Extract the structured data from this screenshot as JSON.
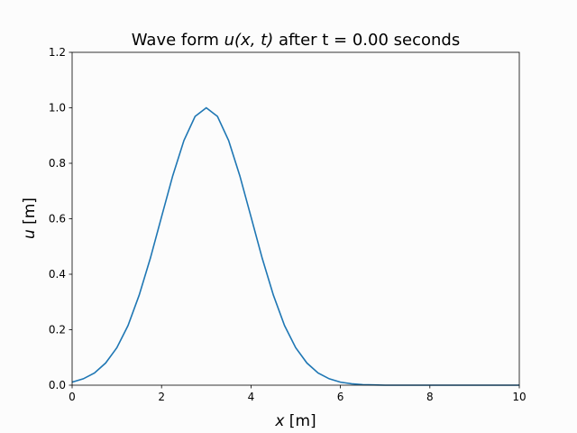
{
  "chart_data": {
    "type": "line",
    "title": {
      "prefix": "Wave form ",
      "math_u": "u",
      "math_args": "(x, t)",
      "suffix_before_time": " after t = ",
      "time": "0.00",
      "suffix": " seconds"
    },
    "xlabel": {
      "var": "x",
      "unit": " [m]"
    },
    "ylabel": {
      "var": "u",
      "unit": " [m]"
    },
    "xlim": [
      0,
      10
    ],
    "ylim": [
      0,
      1.2
    ],
    "x_ticks": [
      "0",
      "2",
      "4",
      "6",
      "8",
      "10"
    ],
    "y_ticks": [
      "0.0",
      "0.2",
      "0.4",
      "0.6",
      "0.8",
      "1.0",
      "1.2"
    ],
    "grid": false,
    "line_color": "#1f77b4",
    "series": [
      {
        "x": [
          0.0,
          0.25,
          0.5,
          0.75,
          1.0,
          1.25,
          1.5,
          1.75,
          2.0,
          2.25,
          2.5,
          2.75,
          3.0,
          3.25,
          3.5,
          3.75,
          4.0,
          4.25,
          4.5,
          4.75,
          5.0,
          5.25,
          5.5,
          5.75,
          6.0,
          6.25,
          6.5,
          6.75,
          7.0,
          7.5,
          8.0,
          8.5,
          9.0,
          9.5,
          10.0
        ],
        "y": [
          0.011,
          0.023,
          0.044,
          0.08,
          0.135,
          0.215,
          0.325,
          0.458,
          0.607,
          0.755,
          0.882,
          0.969,
          1.0,
          0.969,
          0.882,
          0.755,
          0.607,
          0.458,
          0.325,
          0.215,
          0.135,
          0.08,
          0.044,
          0.023,
          0.011,
          0.005,
          0.002,
          0.001,
          0.0,
          0.0,
          0.0,
          0.0,
          0.0,
          0.0,
          0.0
        ]
      }
    ]
  }
}
